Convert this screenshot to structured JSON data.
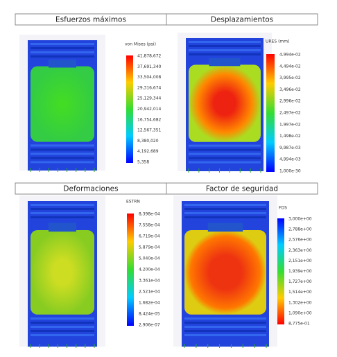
{
  "panels": [
    {
      "header": "Esfuerzos máximos",
      "legend": {
        "title": "von Mises (psi)",
        "labels": [
          "41,878,672",
          "37,691,340",
          "33,504,008",
          "29,316,674",
          "25,129,344",
          "20,942,014",
          "16,754,682",
          "12,567,351",
          "8,380,020",
          "4,192,689",
          "5,358"
        ]
      }
    },
    {
      "header": "Desplazamientos",
      "legend": {
        "title": "URES (mm)",
        "labels": [
          "4,994e-02",
          "4,494e-02",
          "3,995e-02",
          "3,496e-02",
          "2,996e-02",
          "2,497e-02",
          "1,997e-02",
          "1,498e-02",
          "9,987e-03",
          "4,994e-03",
          "1,000e-30"
        ]
      }
    },
    {
      "header": "Deformaciones",
      "legend": {
        "title": "ESTRN",
        "labels": [
          "8,398e-04",
          "7,558e-04",
          "6,719e-04",
          "5,879e-04",
          "5,040e-04",
          "4,200e-04",
          "3,361e-04",
          "2,521e-04",
          "1,682e-04",
          "8,424e-05",
          "2,906e-07"
        ]
      }
    },
    {
      "header": "Factor de seguridad",
      "legend": {
        "title": "FDS",
        "labels": [
          "3,000e+00",
          "2,788e+00",
          "2,576e+00",
          "2,363e+00",
          "2,151e+00",
          "1,939e+00",
          "1,727e+00",
          "1,514e+00",
          "1,302e+00",
          "1,090e+00",
          "8,775e-01"
        ]
      }
    }
  ]
}
